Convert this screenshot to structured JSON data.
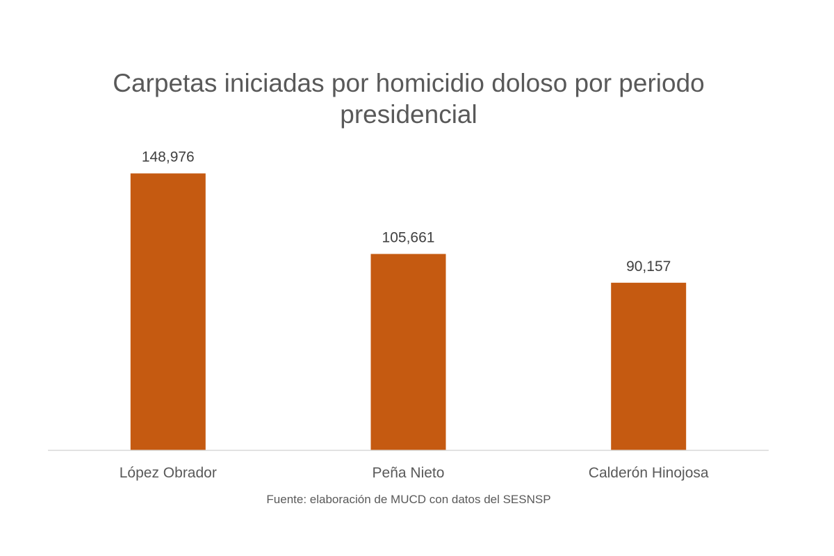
{
  "chart_data": {
    "type": "bar",
    "title_lines": [
      "Carpetas iniciadas por homicidio doloso por periodo",
      "presidencial"
    ],
    "categories": [
      "López Obrador",
      "Peña Nieto",
      "Calderón Hinojosa"
    ],
    "values": [
      148976,
      105661,
      90157
    ],
    "data_labels": [
      "148,976",
      "105,661",
      "90,157"
    ],
    "bar_color": "#C55A11",
    "ylim": [
      0,
      160000
    ],
    "grid": false,
    "legend": "none",
    "xlabel": "",
    "ylabel": "",
    "source": "Fuente: elaboración de MUCD con datos del SESNSP"
  }
}
